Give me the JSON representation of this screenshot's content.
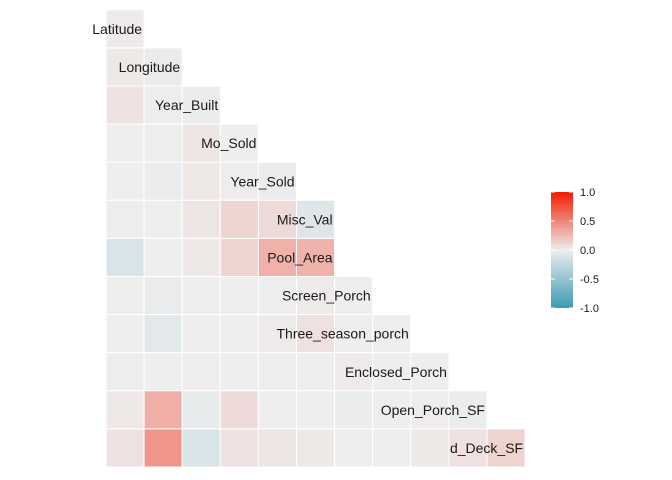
{
  "chart_data": {
    "type": "heatmap",
    "title": "",
    "variables": [
      "Latitude",
      "Longitude",
      "Year_Built",
      "Mo_Sold",
      "Year_Sold",
      "Misc_Val",
      "Pool_Area",
      "Screen_Porch",
      "Three_season_porch",
      "Enclosed_Porch",
      "Open_Porch_SF",
      "d_Deck_SF"
    ],
    "columns": [
      "d_Deck_SF",
      "Open_Porch_SF",
      "Enclosed_Porch",
      "Three_season_porch",
      "Screen_Porch",
      "Pool_Area",
      "Misc_Val",
      "Year_Sold",
      "Mo_Sold",
      "Year_Built",
      "Longitude"
    ],
    "values": [
      [
        0.02
      ],
      [
        0.03,
        -0.03
      ],
      [
        0.05,
        0.01,
        -0.02
      ],
      [
        0.0,
        0.01,
        0.04,
        0.0
      ],
      [
        0.0,
        -0.02,
        0.03,
        0.01,
        -0.02
      ],
      [
        -0.01,
        0.0,
        0.04,
        0.12,
        0.09,
        -0.09
      ],
      [
        -0.12,
        0.0,
        0.03,
        0.12,
        0.29,
        0.28
      ],
      [
        0.0,
        -0.03,
        0.0,
        0.0,
        0.0,
        0.02,
        0.0
      ],
      [
        0.0,
        -0.06,
        0.0,
        0.0,
        0.02,
        0.06,
        0.0,
        0.0
      ],
      [
        -0.01,
        0.0,
        0.01,
        0.0,
        -0.01,
        0.0,
        0.02,
        0.0,
        0.0
      ],
      [
        0.03,
        0.3,
        -0.04,
        0.09,
        0.0,
        0.0,
        -0.02,
        0.0,
        0.01,
        -0.02
      ],
      [
        0.06,
        0.42,
        -0.12,
        0.06,
        0.04,
        0.03,
        0.0,
        0.0,
        0.03,
        0.06,
        0.13
      ]
    ],
    "legend": {
      "position": "right",
      "range": [
        -1.0,
        1.0
      ],
      "ticks": [
        "1.0",
        "0.5",
        "0.0",
        "-0.5",
        "-1.0"
      ],
      "low_color": "#3a9ab2",
      "mid_color": "#eeeeee",
      "high_color": "#f11b00"
    },
    "grid": false,
    "xlabel": "",
    "ylabel": ""
  }
}
